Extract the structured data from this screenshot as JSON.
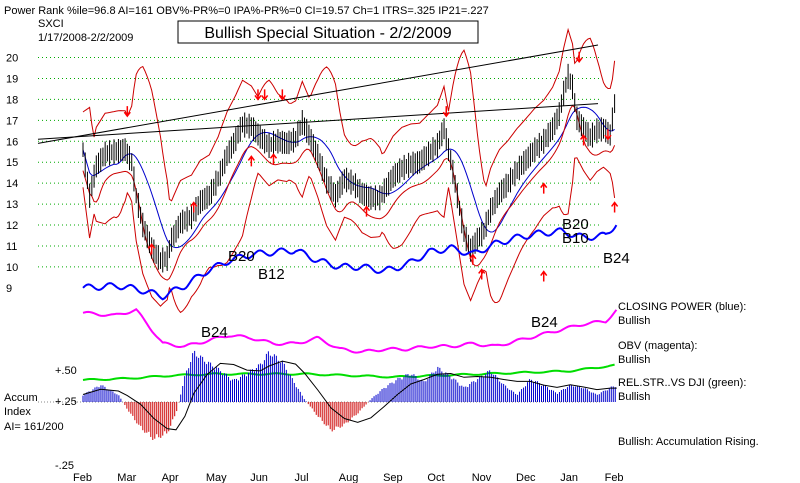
{
  "header": {
    "stats": "Power Rank %ile=96.8   AI=161   OBV%-PR%=0   IPA%-PR%=0   CI=19.57   Ch=1   ITRS=.325   IP21=.227",
    "ticker": "SXCI",
    "range": "1/17/2008-2/2/2009",
    "title": "Bullish Special Situation - 2/2/2009"
  },
  "chart_data": {
    "type": "line",
    "title": "Bullish Special Situation - 2/2/2009",
    "ticker": "SXCI",
    "date_range": "1/17/2008-2/2/2009",
    "x_ticks": [
      "Feb",
      "Mar",
      "Apr",
      "May",
      "Jun",
      "Jul",
      "Aug",
      "Sep",
      "Oct",
      "Nov",
      "Dec",
      "Jan",
      "Feb"
    ],
    "y_ticks": [
      9,
      10,
      11,
      12,
      13,
      14,
      15,
      16,
      17,
      18,
      19,
      20
    ],
    "ylim": [
      8.8,
      20.6
    ],
    "grid": true,
    "price_closes": [
      {
        "m": 0.0,
        "v": 15.6
      },
      {
        "m": 0.15,
        "v": 13.4
      },
      {
        "m": 0.3,
        "v": 14.8
      },
      {
        "m": 0.5,
        "v": 15.4
      },
      {
        "m": 0.7,
        "v": 15.5
      },
      {
        "m": 0.95,
        "v": 15.6
      },
      {
        "m": 1.1,
        "v": 15.0
      },
      {
        "m": 1.2,
        "v": 13.4
      },
      {
        "m": 1.35,
        "v": 12.0
      },
      {
        "m": 1.55,
        "v": 10.9
      },
      {
        "m": 1.75,
        "v": 10.3
      },
      {
        "m": 1.9,
        "v": 10.4
      },
      {
        "m": 2.0,
        "v": 11.3
      },
      {
        "m": 2.2,
        "v": 12.1
      },
      {
        "m": 2.45,
        "v": 12.4
      },
      {
        "m": 2.65,
        "v": 13.1
      },
      {
        "m": 2.85,
        "v": 13.4
      },
      {
        "m": 3.05,
        "v": 14.2
      },
      {
        "m": 3.25,
        "v": 15.3
      },
      {
        "m": 3.45,
        "v": 16.1
      },
      {
        "m": 3.6,
        "v": 16.8
      },
      {
        "m": 3.8,
        "v": 16.7
      },
      {
        "m": 4.0,
        "v": 16.2
      },
      {
        "m": 4.2,
        "v": 15.8
      },
      {
        "m": 4.4,
        "v": 16.0
      },
      {
        "m": 4.6,
        "v": 15.9
      },
      {
        "m": 4.8,
        "v": 16.1
      },
      {
        "m": 4.95,
        "v": 16.9
      },
      {
        "m": 5.1,
        "v": 16.3
      },
      {
        "m": 5.3,
        "v": 15.3
      },
      {
        "m": 5.5,
        "v": 14.1
      },
      {
        "m": 5.7,
        "v": 13.4
      },
      {
        "m": 5.9,
        "v": 14.2
      },
      {
        "m": 6.1,
        "v": 14.0
      },
      {
        "m": 6.3,
        "v": 13.5
      },
      {
        "m": 6.5,
        "v": 13.3
      },
      {
        "m": 6.7,
        "v": 13.3
      },
      {
        "m": 6.85,
        "v": 13.8
      },
      {
        "m": 7.0,
        "v": 14.3
      },
      {
        "m": 7.2,
        "v": 14.7
      },
      {
        "m": 7.4,
        "v": 14.9
      },
      {
        "m": 7.6,
        "v": 15.0
      },
      {
        "m": 7.8,
        "v": 15.4
      },
      {
        "m": 8.0,
        "v": 15.8
      },
      {
        "m": 8.15,
        "v": 16.6
      },
      {
        "m": 8.3,
        "v": 15.1
      },
      {
        "m": 8.45,
        "v": 13.4
      },
      {
        "m": 8.6,
        "v": 11.6
      },
      {
        "m": 8.75,
        "v": 10.8
      },
      {
        "m": 8.9,
        "v": 11.3
      },
      {
        "m": 9.05,
        "v": 11.7
      },
      {
        "m": 9.2,
        "v": 12.7
      },
      {
        "m": 9.4,
        "v": 13.5
      },
      {
        "m": 9.6,
        "v": 14.0
      },
      {
        "m": 9.8,
        "v": 14.6
      },
      {
        "m": 10.0,
        "v": 15.1
      },
      {
        "m": 10.2,
        "v": 15.6
      },
      {
        "m": 10.4,
        "v": 16.0
      },
      {
        "m": 10.6,
        "v": 16.6
      },
      {
        "m": 10.75,
        "v": 17.3
      },
      {
        "m": 10.85,
        "v": 18.3
      },
      {
        "m": 10.95,
        "v": 19.1
      },
      {
        "m": 11.05,
        "v": 18.6
      },
      {
        "m": 11.15,
        "v": 17.1
      },
      {
        "m": 11.3,
        "v": 16.6
      },
      {
        "m": 11.45,
        "v": 16.2
      },
      {
        "m": 11.6,
        "v": 16.5
      },
      {
        "m": 11.75,
        "v": 16.6
      },
      {
        "m": 11.9,
        "v": 16.3
      },
      {
        "m": 12.0,
        "v": 17.8
      },
      {
        "m": 12.05,
        "v": 19.5
      }
    ],
    "closing_power": [
      {
        "m": 0.0,
        "v": 9.0
      },
      {
        "m": 0.8,
        "v": 9.1
      },
      {
        "m": 1.3,
        "v": 8.9
      },
      {
        "m": 1.8,
        "v": 8.6
      },
      {
        "m": 2.3,
        "v": 9.1
      },
      {
        "m": 2.8,
        "v": 9.8
      },
      {
        "m": 3.3,
        "v": 10.3
      },
      {
        "m": 3.8,
        "v": 10.6
      },
      {
        "m": 4.3,
        "v": 10.7
      },
      {
        "m": 4.8,
        "v": 10.8
      },
      {
        "m": 5.3,
        "v": 10.3
      },
      {
        "m": 5.8,
        "v": 10.0
      },
      {
        "m": 6.3,
        "v": 10.0
      },
      {
        "m": 6.8,
        "v": 9.8
      },
      {
        "m": 7.3,
        "v": 10.1
      },
      {
        "m": 7.8,
        "v": 10.7
      },
      {
        "m": 8.3,
        "v": 10.9
      },
      {
        "m": 8.8,
        "v": 10.6
      },
      {
        "m": 9.3,
        "v": 11.1
      },
      {
        "m": 9.8,
        "v": 11.4
      },
      {
        "m": 10.3,
        "v": 11.6
      },
      {
        "m": 10.8,
        "v": 11.7
      },
      {
        "m": 11.3,
        "v": 11.4
      },
      {
        "m": 11.8,
        "v": 11.5
      },
      {
        "m": 12.05,
        "v": 12.1
      }
    ],
    "obv": [
      {
        "m": 0.0,
        "v": 9.1
      },
      {
        "m": 0.7,
        "v": 9.0
      },
      {
        "m": 1.2,
        "v": 9.2
      },
      {
        "m": 1.8,
        "v": 8.0
      },
      {
        "m": 2.3,
        "v": 7.9
      },
      {
        "m": 2.8,
        "v": 8.1
      },
      {
        "m": 3.3,
        "v": 8.3
      },
      {
        "m": 3.8,
        "v": 8.2
      },
      {
        "m": 4.3,
        "v": 8.0
      },
      {
        "m": 4.8,
        "v": 8.0
      },
      {
        "m": 5.3,
        "v": 8.2
      },
      {
        "m": 5.8,
        "v": 7.8
      },
      {
        "m": 6.3,
        "v": 7.7
      },
      {
        "m": 6.8,
        "v": 7.8
      },
      {
        "m": 7.3,
        "v": 7.8
      },
      {
        "m": 7.8,
        "v": 7.9
      },
      {
        "m": 8.3,
        "v": 7.9
      },
      {
        "m": 8.8,
        "v": 8.0
      },
      {
        "m": 9.3,
        "v": 7.9
      },
      {
        "m": 9.8,
        "v": 8.1
      },
      {
        "m": 10.3,
        "v": 8.3
      },
      {
        "m": 10.8,
        "v": 8.5
      },
      {
        "m": 11.3,
        "v": 8.7
      },
      {
        "m": 11.8,
        "v": 8.8
      },
      {
        "m": 12.05,
        "v": 9.2
      }
    ],
    "rel_str_dji": [
      {
        "m": 0.0,
        "v": 6.8
      },
      {
        "m": 1.0,
        "v": 6.9
      },
      {
        "m": 2.0,
        "v": 7.1
      },
      {
        "m": 3.0,
        "v": 7.2
      },
      {
        "m": 4.0,
        "v": 7.2
      },
      {
        "m": 5.0,
        "v": 7.2
      },
      {
        "m": 6.0,
        "v": 7.1
      },
      {
        "m": 7.0,
        "v": 7.0
      },
      {
        "m": 8.0,
        "v": 7.1
      },
      {
        "m": 9.0,
        "v": 7.2
      },
      {
        "m": 10.0,
        "v": 7.3
      },
      {
        "m": 11.0,
        "v": 7.4
      },
      {
        "m": 12.05,
        "v": 7.8
      }
    ],
    "accum_index": [
      {
        "m": 0.0,
        "v": 0.05
      },
      {
        "m": 0.4,
        "v": 0.12
      },
      {
        "m": 0.8,
        "v": 0.05
      },
      {
        "m": 1.0,
        "v": -0.05
      },
      {
        "m": 1.3,
        "v": -0.18
      },
      {
        "m": 1.6,
        "v": -0.26
      },
      {
        "m": 1.9,
        "v": -0.22
      },
      {
        "m": 2.1,
        "v": -0.08
      },
      {
        "m": 2.3,
        "v": 0.18
      },
      {
        "m": 2.5,
        "v": 0.35
      },
      {
        "m": 2.8,
        "v": 0.28
      },
      {
        "m": 3.1,
        "v": 0.22
      },
      {
        "m": 3.4,
        "v": 0.15
      },
      {
        "m": 3.7,
        "v": 0.2
      },
      {
        "m": 4.0,
        "v": 0.26
      },
      {
        "m": 4.2,
        "v": 0.35
      },
      {
        "m": 4.5,
        "v": 0.28
      },
      {
        "m": 4.8,
        "v": 0.12
      },
      {
        "m": 5.0,
        "v": 0.02
      },
      {
        "m": 5.3,
        "v": -0.1
      },
      {
        "m": 5.6,
        "v": -0.2
      },
      {
        "m": 5.9,
        "v": -0.16
      },
      {
        "m": 6.2,
        "v": -0.08
      },
      {
        "m": 6.5,
        "v": 0.02
      },
      {
        "m": 6.8,
        "v": 0.1
      },
      {
        "m": 7.1,
        "v": 0.16
      },
      {
        "m": 7.4,
        "v": 0.2
      },
      {
        "m": 7.7,
        "v": 0.14
      },
      {
        "m": 8.0,
        "v": 0.24
      },
      {
        "m": 8.3,
        "v": 0.18
      },
      {
        "m": 8.6,
        "v": 0.1
      },
      {
        "m": 8.9,
        "v": 0.16
      },
      {
        "m": 9.2,
        "v": 0.22
      },
      {
        "m": 9.5,
        "v": 0.12
      },
      {
        "m": 9.8,
        "v": 0.05
      },
      {
        "m": 10.1,
        "v": 0.16
      },
      {
        "m": 10.4,
        "v": 0.12
      },
      {
        "m": 10.7,
        "v": 0.06
      },
      {
        "m": 11.0,
        "v": 0.12
      },
      {
        "m": 11.3,
        "v": 0.1
      },
      {
        "m": 11.6,
        "v": 0.05
      },
      {
        "m": 11.9,
        "v": 0.1
      },
      {
        "m": 12.05,
        "v": 0.12
      }
    ],
    "accum_ticks": [
      "+.50",
      "+.25",
      "-.25"
    ],
    "up_arrows": [
      {
        "m": 1.55,
        "v": 10.6
      },
      {
        "m": 2.5,
        "v": 12.6
      },
      {
        "m": 3.8,
        "v": 14.8
      },
      {
        "m": 4.3,
        "v": 14.9
      },
      {
        "m": 6.4,
        "v": 12.4
      },
      {
        "m": 8.8,
        "v": 10.1
      },
      {
        "m": 9.0,
        "v": 9.4
      },
      {
        "m": 10.4,
        "v": 13.5
      },
      {
        "m": 10.4,
        "v": 9.3
      },
      {
        "m": 11.3,
        "v": 15.8
      },
      {
        "m": 12.0,
        "v": 12.6
      }
    ],
    "down_arrows": [
      {
        "m": 1.0,
        "v": 17.2
      },
      {
        "m": 3.95,
        "v": 18.0
      },
      {
        "m": 4.1,
        "v": 18.0
      },
      {
        "m": 4.5,
        "v": 18.0
      },
      {
        "m": 8.2,
        "v": 17.2
      },
      {
        "m": 11.2,
        "v": 19.8
      },
      {
        "m": 11.85,
        "v": 16.1
      }
    ],
    "annotations": [
      "B20",
      "B12",
      "B24",
      "B24",
      "B20",
      "B10",
      "B24"
    ],
    "legend": [
      {
        "name": "CLOSING POWER (blue):",
        "status": "Bullish",
        "color": "#0000ff"
      },
      {
        "name": "OBV (magenta):",
        "status": "Bullish",
        "color": "#ff00ff"
      },
      {
        "name": "REL.STR..VS DJI (green):",
        "status": "Bullish",
        "color": "#00dd00"
      }
    ],
    "accum_label": [
      "Accum",
      "Index",
      "AI= 161/200"
    ],
    "summary": "Bullish: Accumulation Rising."
  },
  "colors": {
    "price": "#000000",
    "band": "#cc0000",
    "ma": "#0000cc",
    "closing_power": "#0000ff",
    "obv": "#ff00ff",
    "rel_str": "#00dd00",
    "accum_pos": "#0000cc",
    "accum_neg": "#cc0000",
    "grid": "#00aa00",
    "arrows": "#ff0000"
  }
}
